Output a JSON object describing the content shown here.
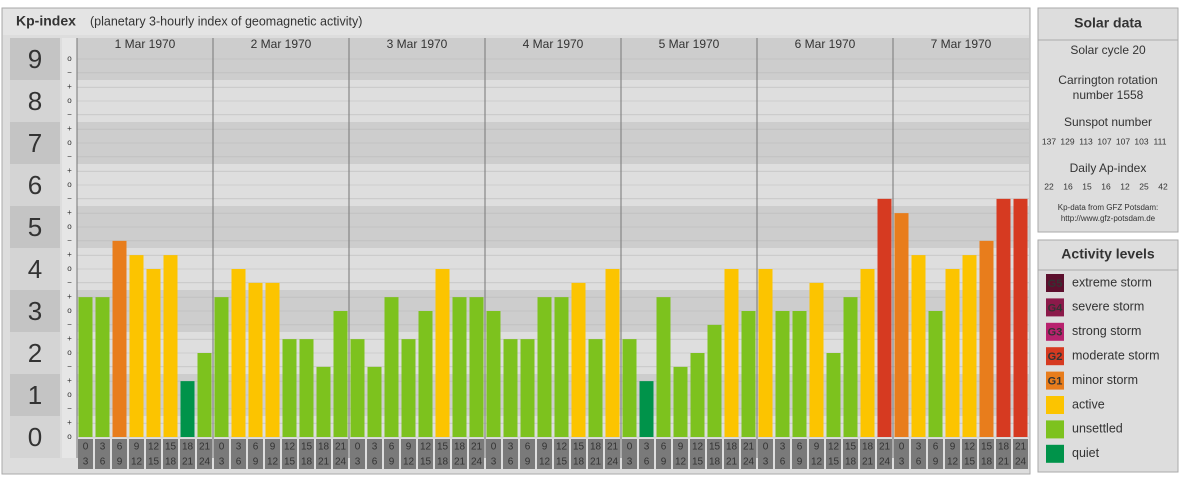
{
  "chart_data": {
    "type": "bar",
    "title": "Kp-index",
    "subtitle": "(planetary 3-hourly index of geomagnetic activity)",
    "days": [
      "1 Mar 1970",
      "2 Mar 1970",
      "3 Mar 1970",
      "4 Mar 1970",
      "5 Mar 1970",
      "6 Mar 1970",
      "7 Mar 1970"
    ],
    "hours": [
      [
        0,
        3
      ],
      [
        3,
        6
      ],
      [
        6,
        9
      ],
      [
        9,
        12
      ],
      [
        12,
        15
      ],
      [
        15,
        18
      ],
      [
        18,
        21
      ],
      [
        21,
        24
      ]
    ],
    "values": [
      3.33,
      3.33,
      4.67,
      4.33,
      4,
      4.33,
      1.33,
      2,
      3.33,
      4,
      3.67,
      3.67,
      2.33,
      2.33,
      1.67,
      3,
      2.33,
      1.67,
      3.33,
      2.33,
      3,
      4,
      3.33,
      3.33,
      3,
      2.33,
      2.33,
      3.33,
      3.33,
      3.67,
      2.33,
      4,
      2.33,
      1.33,
      3.33,
      1.67,
      2,
      2.67,
      4,
      3,
      4,
      3,
      3,
      3.67,
      2,
      3.33,
      4,
      5.67,
      5.33,
      4.33,
      3,
      4,
      4.33,
      4.67,
      5.67,
      5.67
    ],
    "colors": [
      "#7dc21e",
      "#7dc21e",
      "#e87d1c",
      "#fcc400",
      "#fcc400",
      "#fcc400",
      "#00934a",
      "#7dc21e",
      "#7dc21e",
      "#fcc400",
      "#fcc400",
      "#fcc400",
      "#7dc21e",
      "#7dc21e",
      "#7dc21e",
      "#7dc21e",
      "#7dc21e",
      "#7dc21e",
      "#7dc21e",
      "#7dc21e",
      "#7dc21e",
      "#fcc400",
      "#7dc21e",
      "#7dc21e",
      "#7dc21e",
      "#7dc21e",
      "#7dc21e",
      "#7dc21e",
      "#7dc21e",
      "#fcc400",
      "#7dc21e",
      "#fcc400",
      "#7dc21e",
      "#00934a",
      "#7dc21e",
      "#7dc21e",
      "#7dc21e",
      "#7dc21e",
      "#fcc400",
      "#7dc21e",
      "#fcc400",
      "#7dc21e",
      "#7dc21e",
      "#fcc400",
      "#7dc21e",
      "#7dc21e",
      "#fcc400",
      "#d63a21",
      "#e87d1c",
      "#fcc400",
      "#7dc21e",
      "#fcc400",
      "#fcc400",
      "#e87d1c",
      "#d63a21",
      "#d63a21"
    ],
    "ylim": [
      -0.5,
      9.5
    ],
    "yticks": [
      0,
      1,
      2,
      3,
      4,
      5,
      6,
      7,
      8,
      9
    ],
    "minor_ticks": [
      {
        "value": 0,
        "label": "o"
      },
      {
        "value": 0.33,
        "label": "+"
      },
      {
        "value": 0.67,
        "label": "−"
      },
      {
        "value": 1,
        "label": "o"
      },
      {
        "value": 1.33,
        "label": "+"
      },
      {
        "value": 1.67,
        "label": "−"
      },
      {
        "value": 2,
        "label": "o"
      },
      {
        "value": 2.33,
        "label": "+"
      },
      {
        "value": 2.67,
        "label": "−"
      },
      {
        "value": 3,
        "label": "o"
      },
      {
        "value": 3.33,
        "label": "+"
      },
      {
        "value": 3.67,
        "label": "−"
      },
      {
        "value": 4,
        "label": "o"
      },
      {
        "value": 4.33,
        "label": "+"
      },
      {
        "value": 4.67,
        "label": "−"
      },
      {
        "value": 5,
        "label": "o"
      },
      {
        "value": 5.33,
        "label": "+"
      },
      {
        "value": 5.67,
        "label": "−"
      },
      {
        "value": 6,
        "label": "o"
      },
      {
        "value": 6.33,
        "label": "+"
      },
      {
        "value": 6.67,
        "label": "−"
      },
      {
        "value": 7,
        "label": "o"
      },
      {
        "value": 7.33,
        "label": "+"
      },
      {
        "value": 7.67,
        "label": "−"
      },
      {
        "value": 8,
        "label": "o"
      },
      {
        "value": 8.33,
        "label": "+"
      },
      {
        "value": 8.67,
        "label": "−"
      },
      {
        "value": 9,
        "label": "o"
      }
    ],
    "grid": true
  },
  "solar_data": {
    "title": "Solar data",
    "solar_cycle": "Solar cycle 20",
    "carrington_line1": "Carrington rotation",
    "carrington_line2": "number 1558",
    "sunspot_title": "Sunspot number",
    "sunspot_numbers": [
      137,
      129,
      113,
      107,
      107,
      103,
      111
    ],
    "ap_title": "Daily Ap-index",
    "ap_index": [
      22,
      16,
      15,
      16,
      12,
      25,
      42
    ],
    "source": "Kp-data from GFZ Potsdam:",
    "source_url": "http://www.gfz-potsdam.de"
  },
  "activity_levels": {
    "title": "Activity levels",
    "items": [
      {
        "code": "G5",
        "label": "extreme storm",
        "color": "#5c0f2d"
      },
      {
        "code": "G4",
        "label": "severe storm",
        "color": "#8b1a4a"
      },
      {
        "code": "G3",
        "label": "strong storm",
        "color": "#b8226e"
      },
      {
        "code": "G2",
        "label": "moderate storm",
        "color": "#d63a21"
      },
      {
        "code": "G1",
        "label": "minor storm",
        "color": "#e87d1c"
      },
      {
        "label": "active",
        "color": "#fcc400"
      },
      {
        "label": "unsettled",
        "color": "#7dc21e"
      },
      {
        "label": "quiet",
        "color": "#00934a"
      }
    ]
  }
}
